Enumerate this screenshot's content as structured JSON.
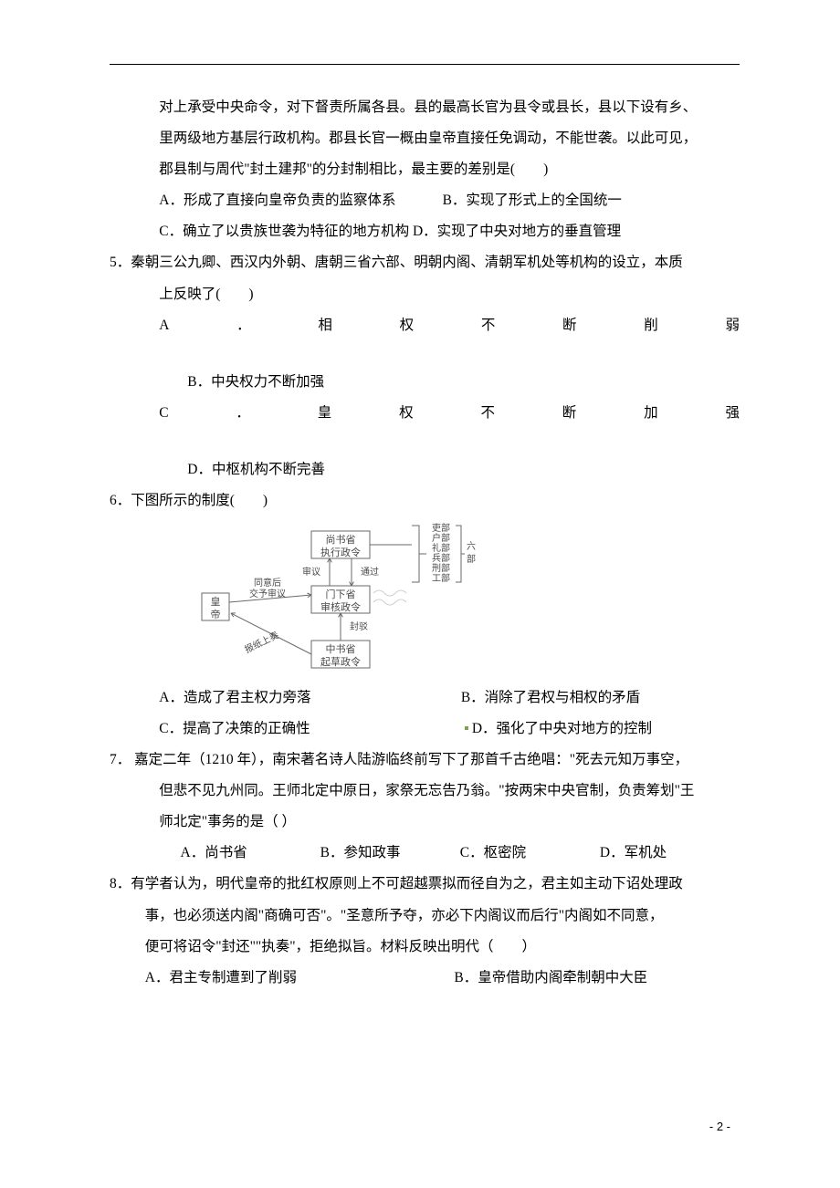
{
  "q4_continued": {
    "line1": "对上承受中央命令，对下督责所属各县。县的最高长官为县令或县长，县以下设有乡、",
    "line2": "里两级地方基层行政机构。郡县长官一概由皇帝直接任免调动，不能世袭。以此可见，",
    "line3": "郡县制与周代\"封土建邦\"的分封制相比，最主要的差别是(　　)",
    "optA": "A．形成了直接向皇帝负责的监察体系",
    "optB": "B．实现了形式上的全国统一",
    "optC": "C．确立了以贵族世袭为特征的地方机构",
    "optD": "D．实现了中央对地方的垂直管理"
  },
  "q5": {
    "stem1": "5．秦朝三公九卿、西汉内外朝、唐朝三省六部、明朝内阁、清朝军机处等机构的设立，本质",
    "stem2": "上反映了(　　)",
    "a_label": "A",
    "a_dot": "．",
    "a_chars": [
      "相",
      "权",
      "不",
      "断",
      "削",
      "弱"
    ],
    "b": "B．中央权力不断加强",
    "c_label": "C",
    "c_dot": "．",
    "c_chars": [
      "皇",
      "权",
      "不",
      "断",
      "加",
      "强"
    ],
    "d": "D．中枢机构不断完善"
  },
  "q6": {
    "stem": "6．下图所示的制度(　　)",
    "diagram": {
      "colors": {
        "stroke": "#6a6a6a",
        "text": "#4a4a4a",
        "bg": "#ffffff"
      },
      "emperor": "皇帝",
      "center_boxes": [
        {
          "l1": "尚书省",
          "l2": "执行政令"
        },
        {
          "l1": "门下省",
          "l2": "审核政令"
        },
        {
          "l1": "中书省",
          "l2": "起草政令"
        }
      ],
      "flow_labels": [
        "同意后",
        "交予审议",
        "审议",
        "通过",
        "封驳",
        "报纸上奏"
      ],
      "right_group": "六部",
      "right_items": [
        "吏部",
        "户部",
        "礼部",
        "兵部",
        "刑部",
        "工部"
      ]
    },
    "optA": "A．造成了君主权力旁落",
    "optB": "B．消除了君权与相权的矛盾",
    "optC": "C．提高了决策的正确性",
    "optD": "D．强化了中央对地方的控制"
  },
  "q7": {
    "stem1": "7．  嘉定二年（1210 年），南宋著名诗人陆游临终前写下了那首千古绝唱：\"死去元知万事空，",
    "stem2": "但悲不见九州同。王师北定中原日，家祭无忘告乃翁。\"按两宋中央官制，负责筹划\"王",
    "stem3": "师北定\"事务的是（  ）",
    "optA": "A．尚书省",
    "optB": "B．参知政事",
    "optC": "C．枢密院",
    "optD": "D．军机处"
  },
  "q8": {
    "stem1": "8．有学者认为，明代皇帝的批红权原则上不可超越票拟而径自为之，君主如主动下诏处理政",
    "stem2": "事，也必须送内阁\"商确可否\"。\"圣意所予夺，亦必下内阁议而后行\"内阁如不同意，",
    "stem3": "便可将诏令\"封还\"\"执奏\"，拒绝拟旨。材料反映出明代（　　）",
    "optA": "A．君主专制遭到了削弱",
    "optB": "B．皇帝借助内阁牵制朝中大臣"
  },
  "page_number": "- 2 -"
}
